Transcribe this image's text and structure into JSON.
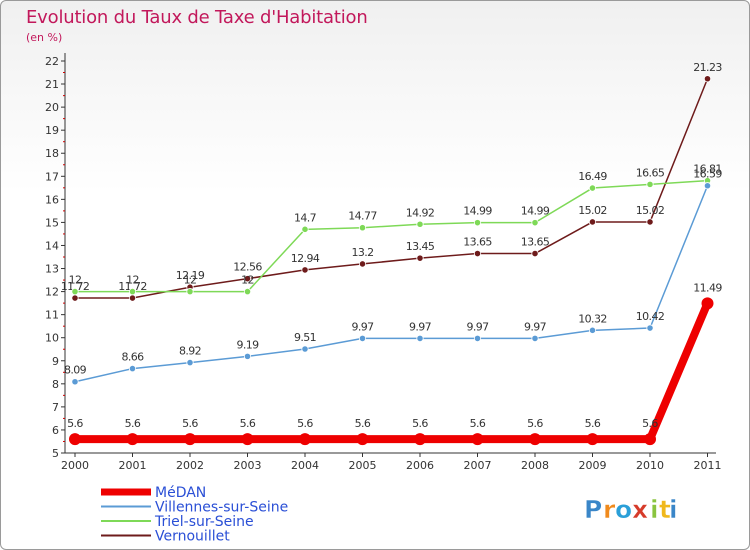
{
  "header": {
    "title": "Evolution du Taux de Taxe d'Habitation",
    "subtitle": "(en %)"
  },
  "chart_data": {
    "type": "line",
    "title": "Evolution du Taux de Taxe d'Habitation",
    "ylabel": "(en %)",
    "xlabel": "",
    "ylim": [
      5,
      22
    ],
    "yticks": [
      5,
      6,
      7,
      8,
      9,
      10,
      11,
      12,
      13,
      14,
      15,
      16,
      17,
      18,
      19,
      20,
      21,
      22
    ],
    "categories": [
      "2000",
      "2001",
      "2002",
      "2003",
      "2004",
      "2005",
      "2006",
      "2007",
      "2008",
      "2009",
      "2010",
      "2011"
    ],
    "grid": false,
    "legend_position": "bottom-left",
    "series": [
      {
        "name": "Vernouillet",
        "color": "#6e1b1b",
        "stroke_width": 1.5,
        "values": [
          11.72,
          11.72,
          12.19,
          12.56,
          12.94,
          13.2,
          13.45,
          13.65,
          13.65,
          15.02,
          15.02,
          21.23
        ],
        "labels": [
          "11.72",
          "11.72",
          "12.19",
          "12.56",
          "12.94",
          "13.2",
          "13.45",
          "13.65",
          "13.65",
          "15.02",
          "15.02",
          "21.23"
        ]
      },
      {
        "name": "Triel-sur-Seine",
        "color": "#7ed957",
        "stroke_width": 1.5,
        "values": [
          12,
          12,
          12,
          12,
          14.7,
          14.77,
          14.92,
          14.99,
          14.99,
          16.49,
          16.65,
          16.81
        ],
        "labels": [
          "12",
          "12",
          "12",
          "12",
          "14.7",
          "14.77",
          "14.92",
          "14.99",
          "14.99",
          "16.49",
          "16.65",
          "16.81"
        ]
      },
      {
        "name": "Villennes-sur-Seine",
        "color": "#5b9bd5",
        "stroke_width": 1.5,
        "values": [
          8.09,
          8.66,
          8.92,
          9.19,
          9.51,
          9.97,
          9.97,
          9.97,
          9.97,
          10.32,
          10.42,
          16.59
        ],
        "labels": [
          "8.09",
          "8.66",
          "8.92",
          "9.19",
          "9.51",
          "9.97",
          "9.97",
          "9.97",
          "9.97",
          "10.32",
          "10.42",
          "16.59"
        ]
      },
      {
        "name": "MéDAN",
        "color": "#ee0000",
        "stroke_width": 8,
        "values": [
          5.6,
          5.6,
          5.6,
          5.6,
          5.6,
          5.6,
          5.6,
          5.6,
          5.6,
          5.6,
          5.6,
          11.49
        ],
        "labels": [
          "5.6",
          "5.6",
          "5.6",
          "5.6",
          "5.6",
          "5.6",
          "5.6",
          "5.6",
          "5.6",
          "5.6",
          "5.6",
          "11.49"
        ]
      }
    ],
    "legend": [
      {
        "name": "MéDAN",
        "color": "#ee0000",
        "thick": true
      },
      {
        "name": "Villennes-sur-Seine",
        "color": "#5b9bd5",
        "thick": false
      },
      {
        "name": "Triel-sur-Seine",
        "color": "#7ed957",
        "thick": false
      },
      {
        "name": "Vernouillet",
        "color": "#6e1b1b",
        "thick": false
      }
    ],
    "legend_text_color": "#2a4fd6",
    "axis_color": "#333333",
    "minor_tick_color": "#cc0000"
  },
  "logo": {
    "text": "Proxiti",
    "letters": [
      "P",
      "r",
      "o",
      "x",
      "i",
      "t",
      "i"
    ],
    "colors": [
      "#3a86c8",
      "#f08a1c",
      "#2a9fd8",
      "#d63b2a",
      "#8ac43f",
      "#f0b81c",
      "#3a86c8"
    ]
  }
}
